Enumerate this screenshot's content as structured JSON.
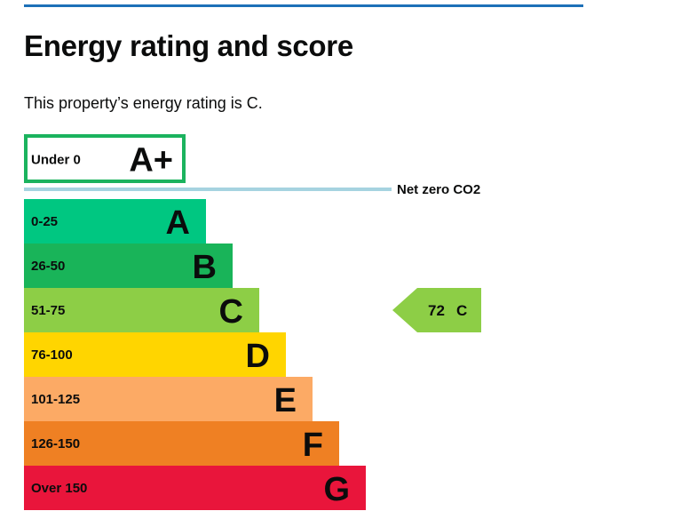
{
  "page": {
    "title": "Energy rating and score",
    "summary": "This property’s energy rating is C."
  },
  "chart_data": {
    "type": "bar",
    "title": "",
    "categories": [
      "A+",
      "A",
      "B",
      "C",
      "D",
      "E",
      "F",
      "G"
    ],
    "bands": [
      {
        "letter": "A+",
        "range": "Under 0",
        "color": "#1bb35e",
        "outlined": true
      },
      {
        "letter": "A",
        "range": "0-25",
        "color": "#00c781"
      },
      {
        "letter": "B",
        "range": "26-50",
        "color": "#19b459"
      },
      {
        "letter": "C",
        "range": "51-75",
        "color": "#8dce46"
      },
      {
        "letter": "D",
        "range": "76-100",
        "color": "#ffd500"
      },
      {
        "letter": "E",
        "range": "101-125",
        "color": "#fcaa65"
      },
      {
        "letter": "F",
        "range": "126-150",
        "color": "#ef8023"
      },
      {
        "letter": "G",
        "range": "Over 150",
        "color": "#e9153b"
      }
    ],
    "net_zero_label": "Net zero CO2",
    "net_zero_line_color": "#a6d3e0",
    "current": {
      "score": "72",
      "letter": "C",
      "band_index": 3,
      "color": "#8dce46"
    }
  }
}
